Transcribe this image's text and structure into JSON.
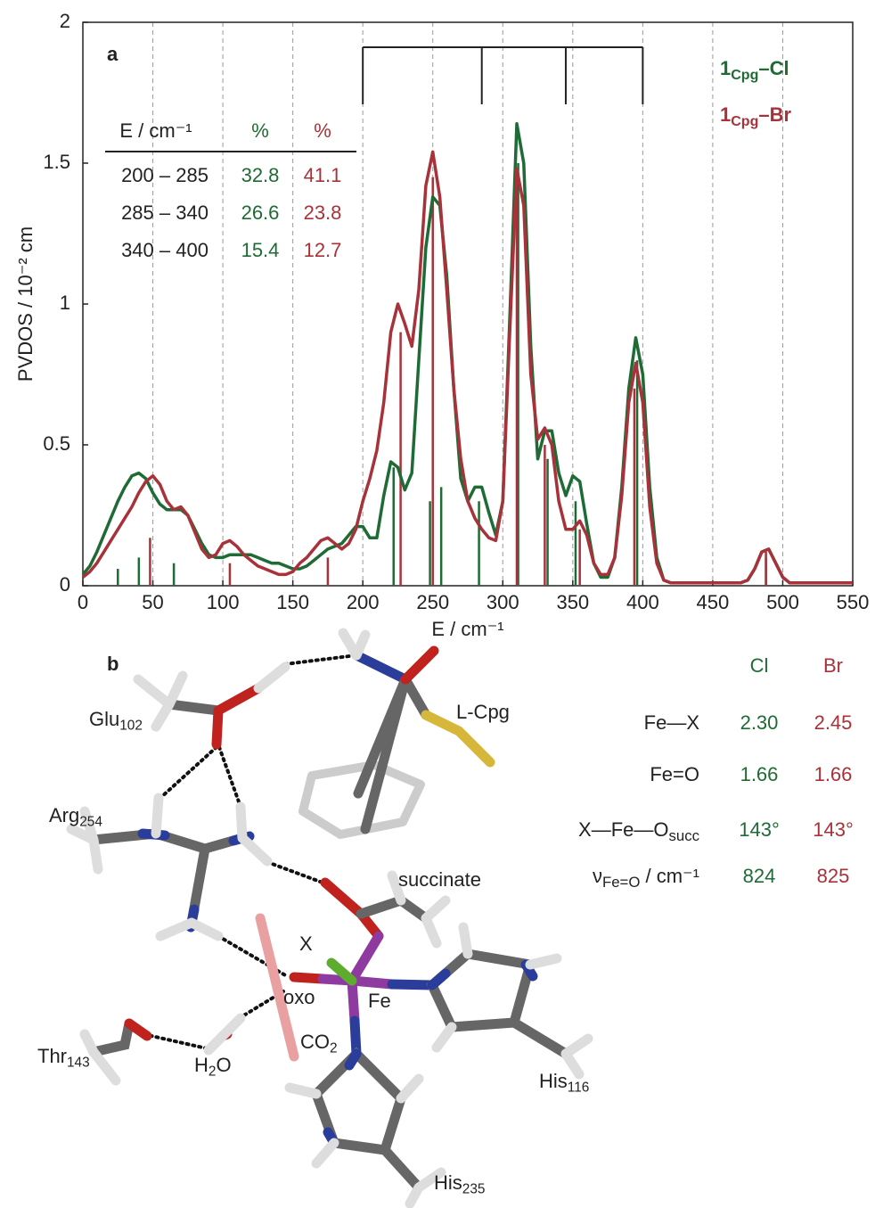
{
  "chart_data": {
    "type": "line",
    "panel_label": "a",
    "xlabel": "E / cm⁻¹",
    "ylabel": "PVDOS / 10⁻² cm",
    "xlim": [
      0,
      550
    ],
    "ylim": [
      0,
      2
    ],
    "xticks": [
      0,
      50,
      100,
      150,
      200,
      250,
      300,
      350,
      400,
      450,
      500,
      550
    ],
    "yticks": [
      0,
      0.5,
      1,
      1.5,
      2
    ],
    "grid": true,
    "bracket_x": [
      200,
      285,
      345,
      400
    ],
    "x": [
      0,
      5,
      10,
      15,
      20,
      25,
      30,
      35,
      40,
      45,
      50,
      55,
      60,
      65,
      70,
      75,
      80,
      85,
      90,
      95,
      100,
      105,
      110,
      115,
      120,
      125,
      130,
      135,
      140,
      145,
      150,
      155,
      160,
      165,
      170,
      175,
      180,
      185,
      190,
      195,
      200,
      205,
      210,
      215,
      220,
      225,
      230,
      235,
      240,
      245,
      250,
      255,
      260,
      265,
      270,
      275,
      280,
      285,
      290,
      295,
      300,
      305,
      310,
      315,
      320,
      325,
      330,
      335,
      340,
      345,
      350,
      355,
      360,
      365,
      370,
      375,
      380,
      385,
      390,
      395,
      400,
      405,
      410,
      415,
      420,
      425,
      430,
      435,
      440,
      445,
      450,
      455,
      460,
      465,
      470,
      475,
      480,
      485,
      490,
      495,
      500,
      505,
      510,
      515,
      520,
      525,
      530,
      535,
      540,
      545,
      550
    ],
    "series": [
      {
        "name": "1Cpg–Cl",
        "color": "#1e6b35",
        "values": [
          0.04,
          0.07,
          0.12,
          0.18,
          0.24,
          0.3,
          0.35,
          0.39,
          0.4,
          0.38,
          0.33,
          0.29,
          0.27,
          0.27,
          0.27,
          0.25,
          0.2,
          0.15,
          0.11,
          0.1,
          0.1,
          0.11,
          0.11,
          0.11,
          0.11,
          0.1,
          0.09,
          0.08,
          0.08,
          0.07,
          0.06,
          0.06,
          0.07,
          0.09,
          0.11,
          0.13,
          0.14,
          0.15,
          0.18,
          0.21,
          0.21,
          0.17,
          0.17,
          0.32,
          0.44,
          0.42,
          0.34,
          0.4,
          0.8,
          1.2,
          1.38,
          1.35,
          1.1,
          0.7,
          0.38,
          0.3,
          0.35,
          0.35,
          0.26,
          0.18,
          0.3,
          0.95,
          1.64,
          1.5,
          0.85,
          0.45,
          0.55,
          0.55,
          0.4,
          0.32,
          0.39,
          0.37,
          0.22,
          0.08,
          0.03,
          0.03,
          0.1,
          0.35,
          0.7,
          0.88,
          0.75,
          0.35,
          0.1,
          0.02,
          0.01,
          0.01,
          0.01,
          0.01,
          0.01,
          0.01,
          0.01,
          0.01,
          0.01,
          0.01,
          0.01,
          0.02,
          0.06,
          0.12,
          0.13,
          0.08,
          0.03,
          0.01,
          0.01,
          0.01,
          0.01,
          0.01,
          0.01,
          0.01,
          0.01,
          0.01,
          0.01
        ],
        "sticks": {
          "x": [
            25,
            40,
            65,
            222,
            248,
            256,
            283,
            311,
            332,
            352,
            396,
            488
          ],
          "values": [
            0.06,
            0.1,
            0.08,
            0.42,
            0.3,
            0.35,
            0.3,
            1.5,
            0.45,
            0.3,
            0.8,
            0.1
          ]
        }
      },
      {
        "name": "1Cpg–Br",
        "color": "#a8323a",
        "values": [
          0.03,
          0.05,
          0.08,
          0.12,
          0.16,
          0.2,
          0.24,
          0.28,
          0.33,
          0.37,
          0.39,
          0.36,
          0.3,
          0.27,
          0.28,
          0.25,
          0.19,
          0.13,
          0.1,
          0.11,
          0.15,
          0.16,
          0.14,
          0.11,
          0.09,
          0.07,
          0.06,
          0.05,
          0.04,
          0.04,
          0.05,
          0.08,
          0.1,
          0.13,
          0.16,
          0.17,
          0.15,
          0.13,
          0.15,
          0.2,
          0.3,
          0.38,
          0.48,
          0.65,
          0.9,
          1.0,
          0.93,
          0.85,
          1.05,
          1.42,
          1.54,
          1.38,
          1.05,
          0.7,
          0.45,
          0.3,
          0.24,
          0.2,
          0.17,
          0.16,
          0.3,
          0.9,
          1.48,
          1.35,
          0.75,
          0.52,
          0.56,
          0.5,
          0.3,
          0.2,
          0.2,
          0.23,
          0.18,
          0.08,
          0.04,
          0.04,
          0.1,
          0.32,
          0.65,
          0.79,
          0.65,
          0.28,
          0.08,
          0.02,
          0.01,
          0.01,
          0.01,
          0.01,
          0.01,
          0.01,
          0.01,
          0.01,
          0.01,
          0.01,
          0.01,
          0.02,
          0.06,
          0.12,
          0.13,
          0.08,
          0.03,
          0.01,
          0.01,
          0.01,
          0.01,
          0.01,
          0.01,
          0.01,
          0.01,
          0.01,
          0.01
        ],
        "sticks": {
          "x": [
            48,
            105,
            175,
            227,
            250,
            310,
            330,
            355,
            394,
            488
          ],
          "values": [
            0.17,
            0.08,
            0.1,
            0.9,
            1.45,
            1.4,
            0.5,
            0.2,
            0.7,
            0.12
          ]
        }
      }
    ],
    "inset_table": {
      "header": [
        "E / cm⁻¹",
        "%",
        "%"
      ],
      "rows": [
        [
          "200 – 285",
          "32.8",
          "41.1"
        ],
        [
          "285 – 340",
          "26.6",
          "23.8"
        ],
        [
          "340 – 400",
          "15.4",
          "12.7"
        ]
      ]
    }
  },
  "structure": {
    "panel_label": "b",
    "labels": [
      {
        "text": "Glu",
        "sub": "102"
      },
      {
        "text": "L-Cpg"
      },
      {
        "text": "Arg",
        "sub": "254"
      },
      {
        "text": "succinate"
      },
      {
        "text": "X"
      },
      {
        "text": "oxo"
      },
      {
        "text": "Fe"
      },
      {
        "text": "CO",
        "sub": "2"
      },
      {
        "text": "H",
        "sub": "2",
        "after": "O"
      },
      {
        "text": "Thr",
        "sub": "143"
      },
      {
        "text": "His",
        "sub": "116"
      },
      {
        "text": "His",
        "sub": "235"
      }
    ],
    "table": {
      "header": [
        "Cl",
        "Br"
      ],
      "rows": [
        {
          "label": {
            "text": "Fe—X"
          },
          "values": [
            "2.30",
            "2.45"
          ]
        },
        {
          "label": {
            "text": "Fe=O"
          },
          "values": [
            "1.66",
            "1.66"
          ]
        },
        {
          "label": {
            "text": "X—Fe—O",
            "sub": "succ"
          },
          "values": [
            "143°",
            "143°"
          ]
        },
        {
          "label": {
            "text": "ν",
            "sub": "Fe=O",
            "after": " / cm⁻¹"
          },
          "values": [
            "824",
            "825"
          ]
        }
      ]
    }
  }
}
